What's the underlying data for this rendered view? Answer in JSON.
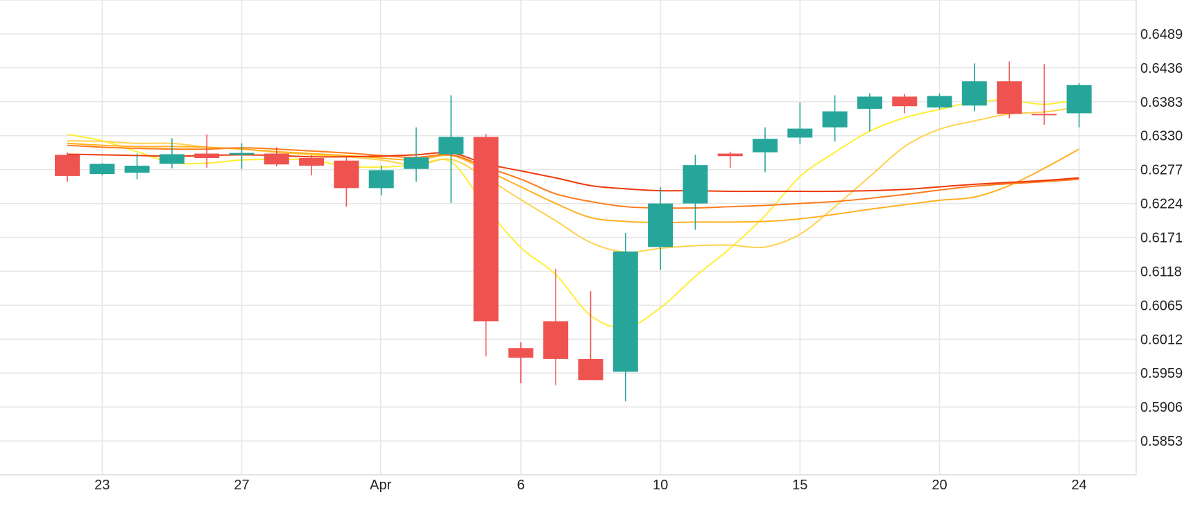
{
  "chart_data": {
    "type": "candlestick",
    "title": "",
    "xlabel": "",
    "ylabel": "",
    "ylim": [
      0.58,
      0.6542
    ],
    "y_ticks": [
      "0.6489",
      "0.6436",
      "0.6383",
      "0.6330",
      "0.6277",
      "0.6224",
      "0.6171",
      "0.6118",
      "0.6065",
      "0.6012",
      "0.5959",
      "0.5906",
      "0.5853"
    ],
    "x_ticks": [
      {
        "label": "23",
        "index": 1
      },
      {
        "label": "27",
        "index": 5
      },
      {
        "label": "Apr",
        "index": 9
      },
      {
        "label": "6",
        "index": 13
      },
      {
        "label": "10",
        "index": 17
      },
      {
        "label": "15",
        "index": 21
      },
      {
        "label": "20",
        "index": 25
      },
      {
        "label": "24",
        "index": 29
      }
    ],
    "colors": {
      "up": "#26a69a",
      "down": "#ef5350"
    },
    "candles": [
      {
        "open": 0.63,
        "high": 0.6304,
        "low": 0.6258,
        "close": 0.6267
      },
      {
        "open": 0.627,
        "high": 0.6287,
        "low": 0.6268,
        "close": 0.6286
      },
      {
        "open": 0.6272,
        "high": 0.6302,
        "low": 0.6262,
        "close": 0.6283
      },
      {
        "open": 0.6286,
        "high": 0.6326,
        "low": 0.6279,
        "close": 0.6301
      },
      {
        "open": 0.6302,
        "high": 0.6332,
        "low": 0.628,
        "close": 0.6295
      },
      {
        "open": 0.63,
        "high": 0.6318,
        "low": 0.6278,
        "close": 0.6303
      },
      {
        "open": 0.6302,
        "high": 0.6312,
        "low": 0.6282,
        "close": 0.6285
      },
      {
        "open": 0.6295,
        "high": 0.63,
        "low": 0.6268,
        "close": 0.6283
      },
      {
        "open": 0.6291,
        "high": 0.6297,
        "low": 0.6219,
        "close": 0.6248
      },
      {
        "open": 0.6248,
        "high": 0.6283,
        "low": 0.6237,
        "close": 0.6276
      },
      {
        "open": 0.6278,
        "high": 0.6343,
        "low": 0.6258,
        "close": 0.6296
      },
      {
        "open": 0.6301,
        "high": 0.6393,
        "low": 0.6225,
        "close": 0.6328
      },
      {
        "open": 0.6328,
        "high": 0.6333,
        "low": 0.5985,
        "close": 0.604
      },
      {
        "open": 0.5998,
        "high": 0.6007,
        "low": 0.5943,
        "close": 0.5983
      },
      {
        "open": 0.604,
        "high": 0.6122,
        "low": 0.594,
        "close": 0.5981
      },
      {
        "open": 0.5981,
        "high": 0.6087,
        "low": 0.5951,
        "close": 0.5948
      },
      {
        "open": 0.5961,
        "high": 0.6178,
        "low": 0.5915,
        "close": 0.6149
      },
      {
        "open": 0.6156,
        "high": 0.6249,
        "low": 0.612,
        "close": 0.6224
      },
      {
        "open": 0.6224,
        "high": 0.63,
        "low": 0.6183,
        "close": 0.6284
      },
      {
        "open": 0.6302,
        "high": 0.6305,
        "low": 0.628,
        "close": 0.6298
      },
      {
        "open": 0.6304,
        "high": 0.6343,
        "low": 0.6273,
        "close": 0.6325
      },
      {
        "open": 0.6327,
        "high": 0.6382,
        "low": 0.6317,
        "close": 0.6341
      },
      {
        "open": 0.6343,
        "high": 0.6393,
        "low": 0.6321,
        "close": 0.6368
      },
      {
        "open": 0.6372,
        "high": 0.6396,
        "low": 0.6337,
        "close": 0.6391
      },
      {
        "open": 0.6391,
        "high": 0.6395,
        "low": 0.6365,
        "close": 0.6376
      },
      {
        "open": 0.6374,
        "high": 0.6396,
        "low": 0.6371,
        "close": 0.6392
      },
      {
        "open": 0.6377,
        "high": 0.6443,
        "low": 0.6368,
        "close": 0.6415
      },
      {
        "open": 0.6415,
        "high": 0.6446,
        "low": 0.6357,
        "close": 0.6364
      },
      {
        "open": 0.6364,
        "high": 0.6442,
        "low": 0.6347,
        "close": 0.6363
      },
      {
        "open": 0.6365,
        "high": 0.6412,
        "low": 0.6343,
        "close": 0.6409
      }
    ],
    "moving_averages": [
      {
        "color": "#ffee33",
        "values": [
          0.6332,
          0.6322,
          0.6305,
          0.6288,
          0.6287,
          0.6292,
          0.6293,
          0.6292,
          0.6282,
          0.6281,
          0.6284,
          0.6289,
          0.6218,
          0.6155,
          0.6113,
          0.6049,
          0.603,
          0.6061,
          0.611,
          0.6154,
          0.6205,
          0.6266,
          0.6304,
          0.6337,
          0.6358,
          0.6371,
          0.6383,
          0.6385,
          0.6379,
          0.6387
        ]
      },
      {
        "color": "#ffd24d",
        "values": [
          0.6322,
          0.6321,
          0.6318,
          0.6318,
          0.6312,
          0.6309,
          0.6304,
          0.63,
          0.6297,
          0.6292,
          0.6284,
          0.6293,
          0.6264,
          0.623,
          0.6197,
          0.6163,
          0.6148,
          0.6154,
          0.6158,
          0.6159,
          0.6156,
          0.6176,
          0.6219,
          0.6266,
          0.6313,
          0.634,
          0.6353,
          0.6364,
          0.6367,
          0.6375
        ]
      },
      {
        "color": "#ffb020",
        "values": [
          0.6318,
          0.6315,
          0.6313,
          0.6313,
          0.6312,
          0.6309,
          0.6305,
          0.6302,
          0.6299,
          0.6295,
          0.6292,
          0.6299,
          0.6276,
          0.625,
          0.6224,
          0.6202,
          0.6196,
          0.6194,
          0.6195,
          0.6195,
          0.6196,
          0.62,
          0.6207,
          0.6215,
          0.6222,
          0.6229,
          0.6234,
          0.6252,
          0.6279,
          0.6309
        ]
      },
      {
        "color": "#ff7a1a",
        "values": [
          0.6315,
          0.6312,
          0.631,
          0.6309,
          0.6309,
          0.6311,
          0.6309,
          0.6306,
          0.6303,
          0.6299,
          0.6296,
          0.63,
          0.6281,
          0.6262,
          0.6239,
          0.6227,
          0.6219,
          0.6217,
          0.6217,
          0.6219,
          0.6221,
          0.6224,
          0.6227,
          0.6232,
          0.6238,
          0.6245,
          0.6251,
          0.6255,
          0.6258,
          0.6262
        ]
      },
      {
        "color": "#ee3a0c",
        "values": [
          0.6301,
          0.63,
          0.6299,
          0.6298,
          0.6299,
          0.63,
          0.6299,
          0.6297,
          0.6297,
          0.6298,
          0.63,
          0.6303,
          0.6286,
          0.6275,
          0.6264,
          0.6252,
          0.6247,
          0.6244,
          0.6244,
          0.6243,
          0.6243,
          0.6243,
          0.6243,
          0.6244,
          0.6246,
          0.625,
          0.6254,
          0.6257,
          0.626,
          0.6264
        ]
      }
    ]
  }
}
